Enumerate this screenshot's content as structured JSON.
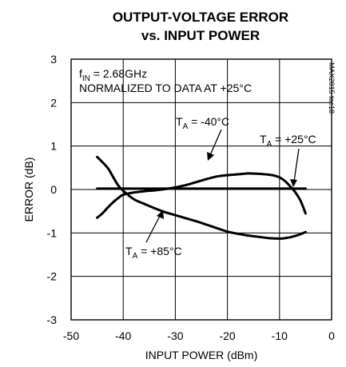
{
  "chart_data": {
    "type": "line",
    "title": [
      "OUTPUT-VOLTAGE ERROR",
      "vs. INPUT POWER"
    ],
    "xlabel": "INPUT POWER (dBm)",
    "ylabel": "ERROR (dB)",
    "xlim": [
      -50,
      0
    ],
    "ylim": [
      -3,
      3
    ],
    "xticks": [
      -50,
      -40,
      -30,
      -20,
      -10,
      0
    ],
    "yticks": [
      3,
      2,
      1,
      0,
      -1,
      -2,
      -3
    ],
    "grid": true,
    "conditions": {
      "freq_prefix": "f",
      "freq_sub": "IN",
      "freq_value": " = 2.68GHz",
      "normalized": "NORMALIZED TO DATA AT +25°C"
    },
    "side_label": "MAX2015 toc18",
    "series": [
      {
        "name": "TA = -40°C",
        "label_prefix": "T",
        "label_sub": "A",
        "label_value": " = -40°C",
        "x": [
          -45,
          -44,
          -43,
          -42,
          -41,
          -40,
          -38,
          -36,
          -34,
          -32,
          -30,
          -28,
          -26,
          -24,
          -22,
          -20,
          -18,
          -17,
          -16,
          -14,
          -12,
          -11,
          -10,
          -9,
          -8,
          -7,
          -6,
          -5
        ],
        "y": [
          -0.65,
          -0.55,
          -0.42,
          -0.3,
          -0.2,
          -0.12,
          -0.07,
          -0.04,
          -0.02,
          0.01,
          0.05,
          0.1,
          0.17,
          0.24,
          0.3,
          0.33,
          0.35,
          0.36,
          0.37,
          0.36,
          0.34,
          0.32,
          0.28,
          0.2,
          0.08,
          -0.06,
          -0.25,
          -0.55
        ]
      },
      {
        "name": "TA = +25°C",
        "label_prefix": "T",
        "label_sub": "A",
        "label_value": " = +25°C",
        "x": [
          -45,
          -5
        ],
        "y": [
          0.02,
          0.02
        ]
      },
      {
        "name": "TA = +85°C",
        "label_prefix": "T",
        "label_sub": "A",
        "label_value": " = +85°C",
        "x": [
          -45,
          -43,
          -42,
          -41,
          -40,
          -38,
          -36,
          -34,
          -32,
          -30,
          -28,
          -26,
          -24,
          -22,
          -20,
          -18,
          -16,
          -14,
          -12,
          -10,
          -9,
          -8,
          -7,
          -6,
          -5
        ],
        "y": [
          0.75,
          0.5,
          0.3,
          0.1,
          -0.03,
          -0.22,
          -0.33,
          -0.43,
          -0.52,
          -0.59,
          -0.66,
          -0.73,
          -0.81,
          -0.89,
          -0.97,
          -1.02,
          -1.06,
          -1.09,
          -1.12,
          -1.13,
          -1.12,
          -1.1,
          -1.07,
          -1.03,
          -0.98
        ]
      }
    ]
  }
}
